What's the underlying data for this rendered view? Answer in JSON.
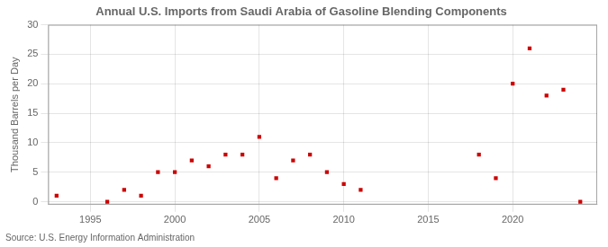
{
  "chart_data": {
    "type": "scatter",
    "title": "Annual U.S. Imports from Saudi Arabia of Gasoline Blending Components",
    "ylabel": "Thousand Barrels per Day",
    "annotation": "Source: U.S. Energy Information Administration",
    "x": [
      1993,
      1996,
      1997,
      1998,
      1999,
      2000,
      2001,
      2002,
      2003,
      2004,
      2005,
      2006,
      2007,
      2008,
      2009,
      2010,
      2011,
      2018,
      2019,
      2020,
      2021,
      2022,
      2023,
      2024
    ],
    "values": [
      1,
      0,
      2,
      1,
      5,
      5,
      7,
      6,
      8,
      8,
      11,
      4,
      7,
      8,
      5,
      3,
      2,
      8,
      4,
      20,
      26,
      18,
      19,
      0
    ],
    "color": "#cc0000",
    "marker": "square",
    "xlim": [
      1992.5,
      2025
    ],
    "ylim": [
      -0.5,
      30
    ],
    "xticks": [
      1995,
      2000,
      2005,
      2010,
      2015,
      2020
    ],
    "yticks": [
      0,
      5,
      10,
      15,
      20,
      25,
      30
    ],
    "grid": true
  }
}
